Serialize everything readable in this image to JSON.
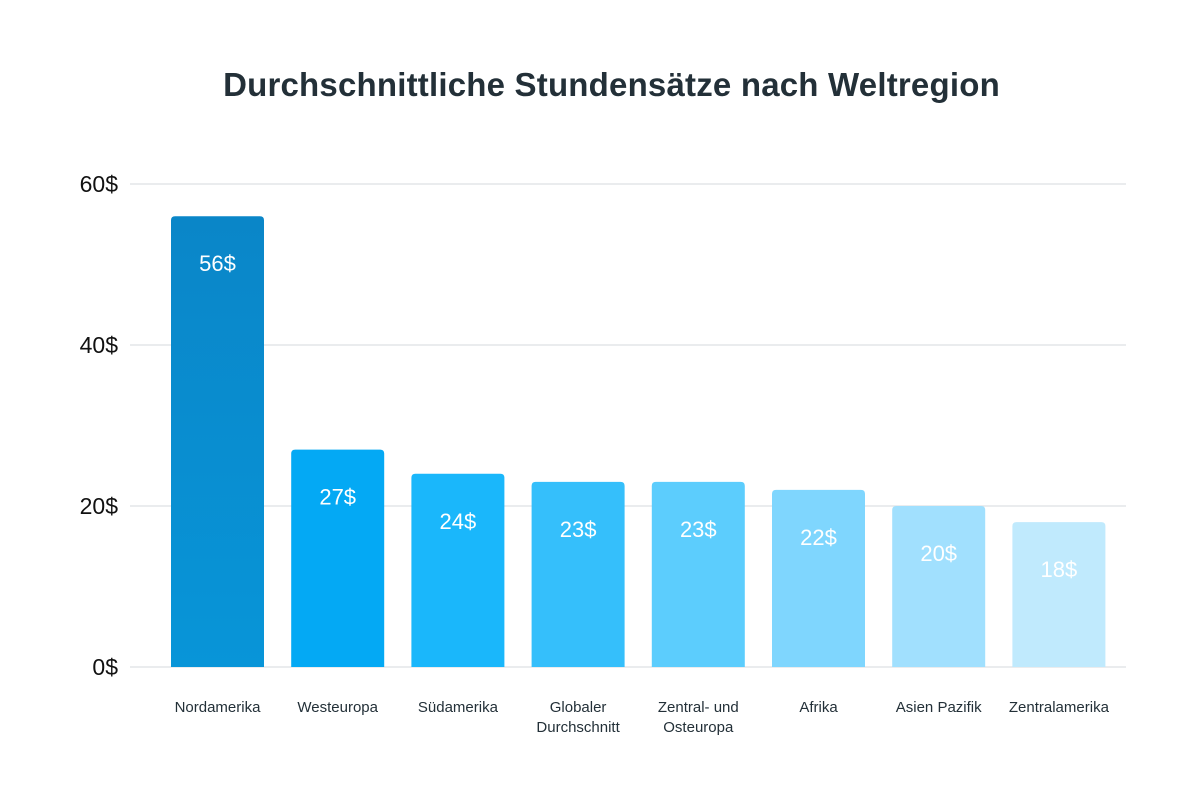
{
  "chart_data": {
    "type": "bar",
    "title": "Durchschnittliche Stundensätze nach Weltregion",
    "xlabel": "",
    "ylabel": "",
    "ylim": [
      0,
      60
    ],
    "yticks": [
      0,
      20,
      40,
      60
    ],
    "ytick_labels": [
      "0$",
      "20$",
      "40$",
      "60$"
    ],
    "grid": true,
    "categories": [
      [
        "Nordamerika"
      ],
      [
        "Westeuropa"
      ],
      [
        "Südamerika"
      ],
      [
        "Globaler",
        "Durchschnitt"
      ],
      [
        "Zentral- und",
        "Osteuropa"
      ],
      [
        "Afrika"
      ],
      [
        "Asien Pazifik"
      ],
      [
        "Zentralamerika"
      ]
    ],
    "values": [
      56,
      27,
      24,
      23,
      23,
      22,
      20,
      18
    ],
    "value_labels": [
      "56$",
      "27$",
      "24$",
      "23$",
      "23$",
      "22$",
      "20$",
      "18$"
    ],
    "bar_colors": [
      "#0b93d6",
      "#04a9f4",
      "#1ab7fb",
      "#35bffb",
      "#5ccdfd",
      "#7fd6fe",
      "#a1e0fe",
      "#c0eafd"
    ]
  }
}
